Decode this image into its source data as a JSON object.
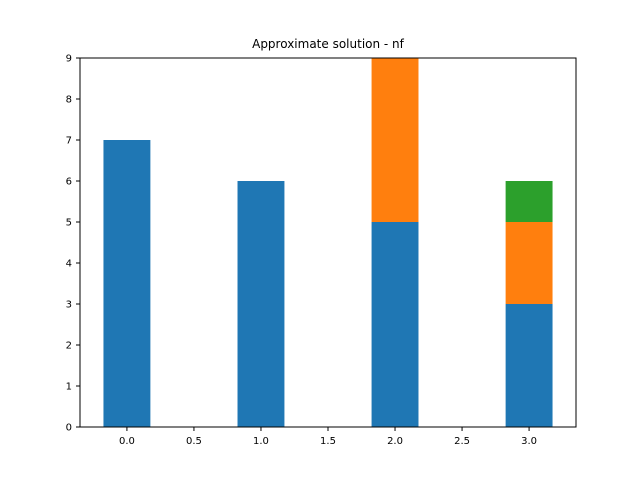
{
  "chart_data": {
    "type": "bar",
    "stacked": true,
    "title": "Approximate solution - nf",
    "xlabel": "",
    "ylabel": "",
    "x": [
      0,
      1,
      2,
      3
    ],
    "xlim": [
      -0.35,
      3.35
    ],
    "ylim": [
      0,
      9
    ],
    "bar_width": 0.35,
    "xticks": [
      "0.0",
      "0.5",
      "1.0",
      "1.5",
      "2.0",
      "2.5",
      "3.0"
    ],
    "yticks": [
      "0",
      "1",
      "2",
      "3",
      "4",
      "5",
      "6",
      "7",
      "8",
      "9"
    ],
    "grid": false,
    "legend": "none",
    "series": [
      {
        "values": [
          7,
          6,
          5,
          3
        ],
        "color": "#1f77b4"
      },
      {
        "values": [
          0,
          0,
          4,
          2
        ],
        "color": "#ff7f0e"
      },
      {
        "values": [
          0,
          0,
          0,
          1
        ],
        "color": "#2ca02c"
      }
    ]
  }
}
